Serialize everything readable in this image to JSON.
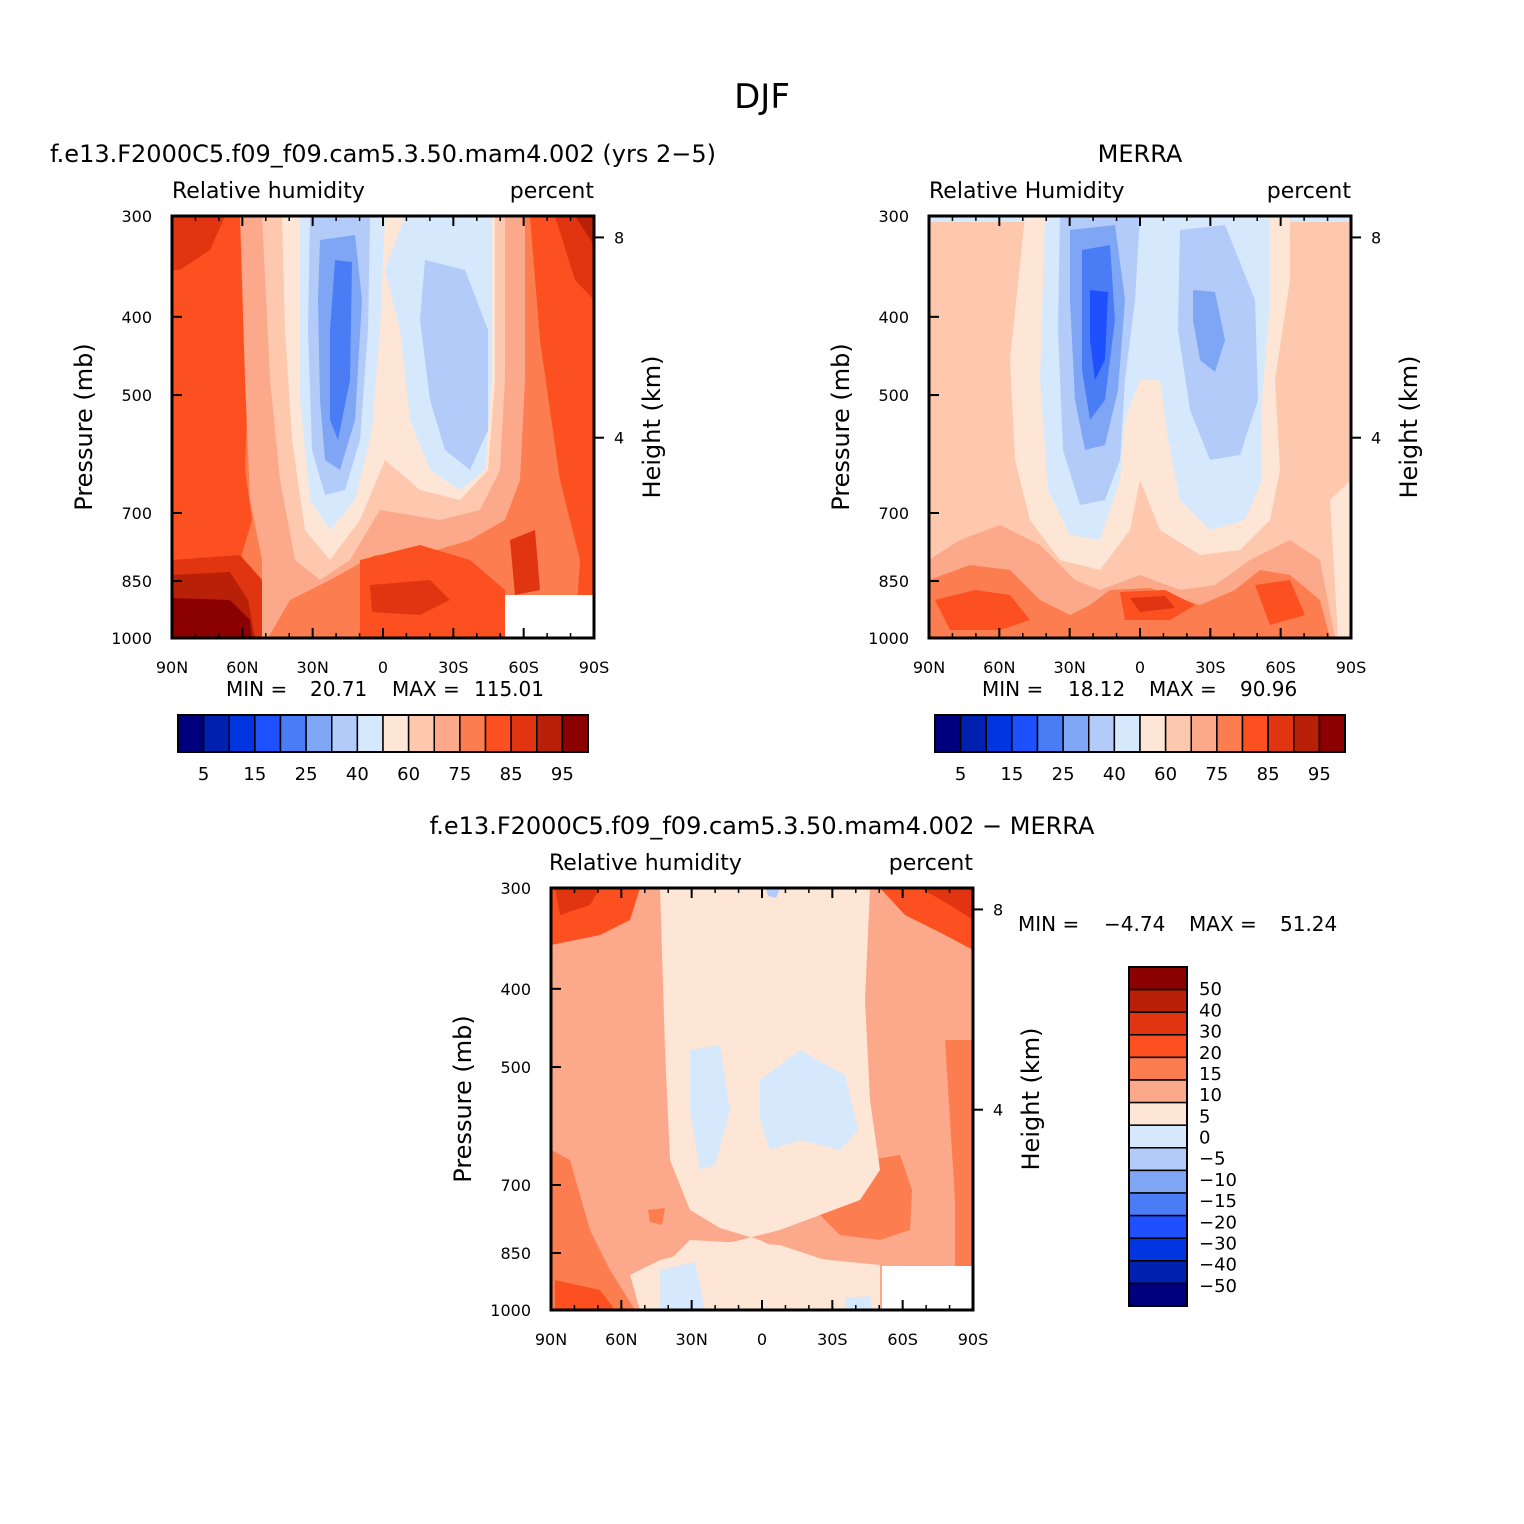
{
  "figure_title": "DJF",
  "colors": {
    "abs_scale": [
      "#00007f",
      "#0020b0",
      "#0035e0",
      "#1e50ff",
      "#4a7df5",
      "#7fa5f5",
      "#b2cbf9",
      "#d6e8fb",
      "#fde6d5",
      "#fdc8ad",
      "#fca88a",
      "#fc7d50",
      "#fc5020",
      "#e03510",
      "#b82008",
      "#8b0000"
    ],
    "diff_scale": [
      "#00007f",
      "#0020b0",
      "#0035e0",
      "#1e50ff",
      "#4a7df5",
      "#7fa5f5",
      "#b2cbf9",
      "#d6e8fb",
      "#fde6d5",
      "#fca88a",
      "#fc7d50",
      "#fc5020",
      "#e03510",
      "#b82008",
      "#8b0000"
    ]
  },
  "chart_data": [
    {
      "type": "heatmap",
      "title": "f.e13.F2000C5.f09_f09.cam5.3.50.mam4.002 (yrs 2−5)",
      "left_string": "Relative  humidity",
      "right_string": "percent",
      "xlabel": "",
      "ylabel": "Pressure  (mb)",
      "y2label": "Height  (km)",
      "x_ticks": [
        "90N",
        "60N",
        "30N",
        "0",
        "30S",
        "60S",
        "90S"
      ],
      "y_ticks": [
        300,
        400,
        500,
        700,
        850,
        1000
      ],
      "y2_ticks": [
        8,
        4
      ],
      "min_label": "MIN  =",
      "min_value": "20.71",
      "max_label": "MAX  =",
      "max_value": "115.01",
      "colorbar_labels": [
        "5",
        "15",
        "25",
        "40",
        "60",
        "75",
        "85",
        "95"
      ],
      "approx_field": {
        "lat": [
          90,
          60,
          30,
          15,
          0,
          -20,
          -40,
          -60,
          -90
        ],
        "rh_at_300mb": [
          95,
          80,
          45,
          30,
          70,
          55,
          60,
          85,
          95
        ],
        "rh_at_500mb": [
          85,
          75,
          35,
          20,
          60,
          40,
          45,
          75,
          85
        ],
        "rh_at_850mb": [
          90,
          85,
          70,
          55,
          85,
          80,
          75,
          90,
          80
        ],
        "rh_at_1000mb": [
          95,
          90,
          75,
          70,
          88,
          85,
          80,
          85,
          80
        ]
      }
    },
    {
      "type": "heatmap",
      "title": "MERRA",
      "left_string": "Relative  Humidity",
      "right_string": "percent",
      "xlabel": "",
      "ylabel": "Pressure  (mb)",
      "y2label": "Height  (km)",
      "x_ticks": [
        "90N",
        "60N",
        "30N",
        "0",
        "30S",
        "60S",
        "90S"
      ],
      "y_ticks": [
        300,
        400,
        500,
        700,
        850,
        1000
      ],
      "y2_ticks": [
        8,
        4
      ],
      "min_label": "MIN  =",
      "min_value": "18.12",
      "max_label": "MAX  =",
      "max_value": "90.96",
      "colorbar_labels": [
        "5",
        "15",
        "25",
        "40",
        "60",
        "75",
        "85",
        "95"
      ],
      "approx_field": {
        "lat": [
          90,
          60,
          30,
          15,
          0,
          -20,
          -40,
          -60,
          -90
        ],
        "rh_at_300mb": [
          60,
          60,
          35,
          25,
          50,
          40,
          55,
          60,
          60
        ],
        "rh_at_500mb": [
          65,
          65,
          30,
          18,
          55,
          35,
          45,
          65,
          65
        ],
        "rh_at_850mb": [
          75,
          70,
          60,
          50,
          65,
          55,
          60,
          75,
          70
        ],
        "rh_at_1000mb": [
          80,
          80,
          75,
          75,
          85,
          80,
          80,
          85,
          75
        ]
      }
    },
    {
      "type": "heatmap",
      "title": "f.e13.F2000C5.f09_f09.cam5.3.50.mam4.002  −  MERRA",
      "left_string": "Relative  humidity",
      "right_string": "percent",
      "xlabel": "",
      "ylabel": "Pressure  (mb)",
      "y2label": "Height  (km)",
      "x_ticks": [
        "90N",
        "60N",
        "30N",
        "0",
        "30S",
        "60S",
        "90S"
      ],
      "y_ticks": [
        300,
        400,
        500,
        700,
        850,
        1000
      ],
      "y2_ticks": [
        8,
        4
      ],
      "min_label": "MIN  =",
      "min_value": "−4.74",
      "max_label": "MAX  =",
      "max_value": "51.24",
      "colorbar_labels": [
        "50",
        "40",
        "30",
        "20",
        "15",
        "10",
        "5",
        "0",
        "−5",
        "−10",
        "−15",
        "−20",
        "−30",
        "−40",
        "−50"
      ],
      "approx_field": {
        "lat": [
          90,
          60,
          30,
          15,
          0,
          -20,
          -40,
          -60,
          -90
        ],
        "diff_at_300mb": [
          35,
          20,
          5,
          5,
          5,
          5,
          5,
          15,
          35
        ],
        "diff_at_500mb": [
          15,
          12,
          5,
          0,
          5,
          5,
          5,
          12,
          12
        ],
        "diff_at_850mb": [
          15,
          12,
          8,
          5,
          5,
          10,
          15,
          12,
          12
        ],
        "diff_at_1000mb": [
          20,
          15,
          0,
          5,
          5,
          5,
          5,
          8,
          10
        ]
      }
    }
  ]
}
